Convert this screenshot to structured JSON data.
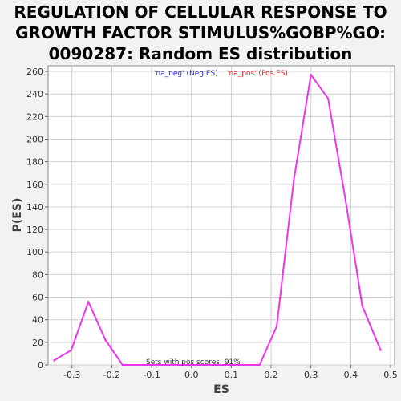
{
  "chart_data": {
    "type": "line",
    "title_lines": [
      "REGULATION OF CELLULAR RESPONSE TO",
      "GROWTH FACTOR STIMULUS%GOBP%GO:",
      "0090287: Random ES distribution"
    ],
    "xlabel": "ES",
    "ylabel": "P(ES)",
    "xlim": [
      -0.36,
      0.51
    ],
    "ylim": [
      0,
      265
    ],
    "x_ticks": [
      -0.3,
      -0.2,
      -0.1,
      0.0,
      0.1,
      0.2,
      0.3,
      0.4,
      0.5
    ],
    "x_tick_labels": [
      "-0.3",
      "-0.2",
      "-0.1",
      "0.0",
      "0.1",
      "0.2",
      "0.3",
      "0.4",
      "0.5"
    ],
    "y_ticks": [
      0,
      20,
      40,
      60,
      80,
      100,
      120,
      140,
      160,
      180,
      200,
      220,
      240,
      260
    ],
    "y_tick_labels": [
      "0",
      "20",
      "40",
      "60",
      "80",
      "100",
      "120",
      "140",
      "160",
      "180",
      "200",
      "220",
      "240",
      "260"
    ],
    "grid": true,
    "legend": [
      {
        "name": "'na_neg' (Neg ES)",
        "color": "#2222cc"
      },
      {
        "name": "'na_pos' (Pos ES)",
        "color": "#dd2222"
      }
    ],
    "legend_placement": "top-center",
    "annotation": "Sets with pos scores: 91%",
    "series": [
      {
        "color": "#ee33ee",
        "x": [
          -0.345,
          -0.302,
          -0.259,
          -0.216,
          -0.173,
          -0.13,
          -0.087,
          -0.044,
          -0.001,
          0.042,
          0.085,
          0.128,
          0.171,
          0.214,
          0.257,
          0.3,
          0.343,
          0.386,
          0.429,
          0.475
        ],
        "y": [
          4,
          13,
          56,
          22,
          0,
          0,
          0,
          0,
          0,
          0,
          0,
          0,
          0,
          34,
          164,
          257,
          236,
          148,
          52,
          13
        ]
      }
    ]
  }
}
